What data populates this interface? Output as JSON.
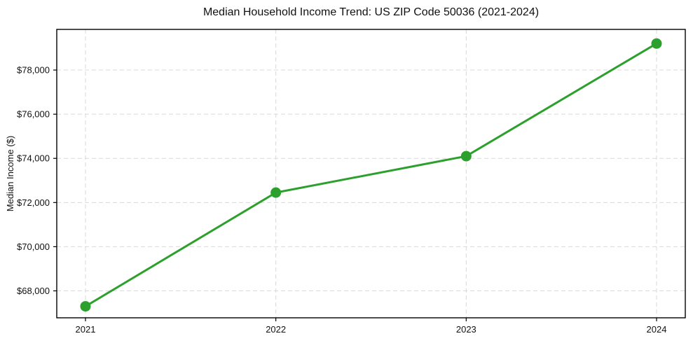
{
  "chart_data": {
    "type": "line",
    "title": "Median Household Income Trend: US ZIP Code 50036 (2021-2024)",
    "xlabel": "",
    "ylabel": "Median Income ($)",
    "categories": [
      "2021",
      "2022",
      "2023",
      "2024"
    ],
    "series": [
      {
        "name": "Median Household Income",
        "values": [
          67300,
          72450,
          74100,
          79200
        ]
      }
    ],
    "ytick_values": [
      68000,
      70000,
      72000,
      74000,
      76000,
      78000
    ],
    "ytick_labels": [
      "$68,000",
      "$70,000",
      "$72,000",
      "$74,000",
      "$76,000",
      "$78,000"
    ],
    "ylim": [
      66780,
      79840
    ],
    "grid": true,
    "legend": "none",
    "colors": {
      "line": "#2ca02c",
      "marker": "#2ca02c",
      "gridline": "#d9d9d9",
      "spine": "#000000",
      "text": "#111111",
      "background": "#ffffff"
    }
  }
}
